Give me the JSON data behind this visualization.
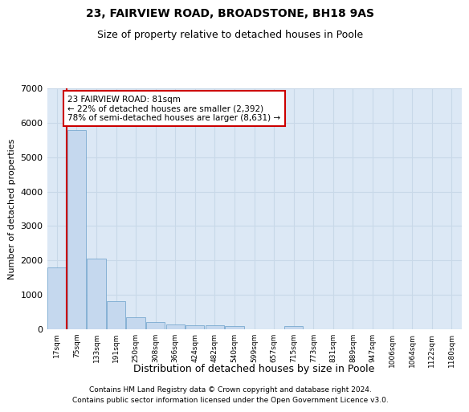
{
  "title1": "23, FAIRVIEW ROAD, BROADSTONE, BH18 9AS",
  "title2": "Size of property relative to detached houses in Poole",
  "xlabel": "Distribution of detached houses by size in Poole",
  "ylabel": "Number of detached properties",
  "bar_color": "#c5d8ee",
  "bar_edge_color": "#7aaad0",
  "grid_color": "#c8d8e8",
  "bg_color": "#dce8f5",
  "categories": [
    "17sqm",
    "75sqm",
    "133sqm",
    "191sqm",
    "250sqm",
    "308sqm",
    "366sqm",
    "424sqm",
    "482sqm",
    "540sqm",
    "599sqm",
    "657sqm",
    "715sqm",
    "773sqm",
    "831sqm",
    "889sqm",
    "947sqm",
    "1006sqm",
    "1064sqm",
    "1122sqm",
    "1180sqm"
  ],
  "values": [
    1790,
    5780,
    2060,
    820,
    350,
    200,
    130,
    120,
    110,
    90,
    0,
    0,
    100,
    0,
    0,
    0,
    0,
    0,
    0,
    0,
    0
  ],
  "vline_x_idx": 0.5,
  "annotation_text": "23 FAIRVIEW ROAD: 81sqm\n← 22% of detached houses are smaller (2,392)\n78% of semi-detached houses are larger (8,631) →",
  "annotation_box_color": "#ffffff",
  "annotation_border_color": "#cc0000",
  "vline_color": "#cc0000",
  "ylim": [
    0,
    7000
  ],
  "yticks": [
    0,
    1000,
    2000,
    3000,
    4000,
    5000,
    6000,
    7000
  ],
  "footer1": "Contains HM Land Registry data © Crown copyright and database right 2024.",
  "footer2": "Contains public sector information licensed under the Open Government Licence v3.0."
}
